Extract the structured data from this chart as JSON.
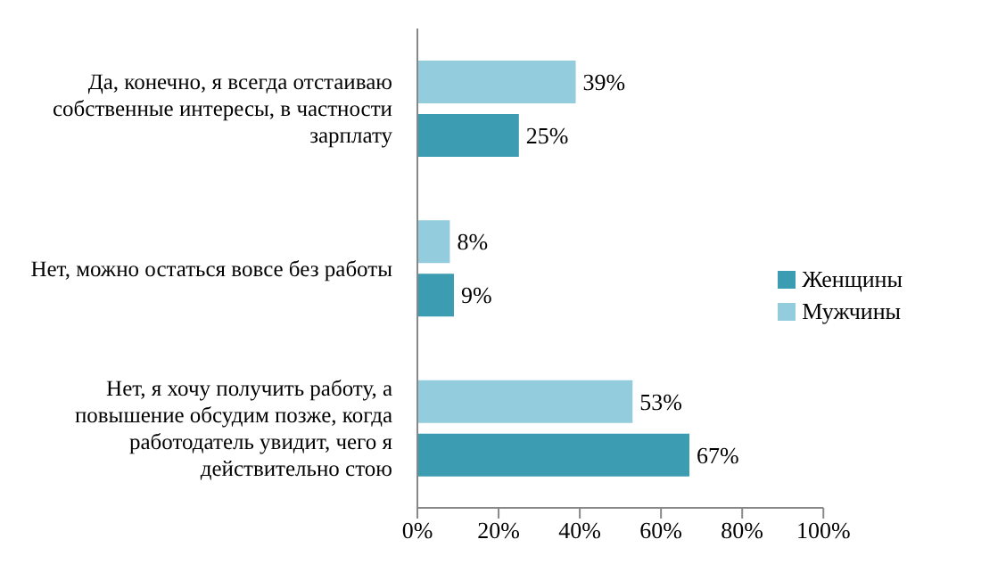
{
  "chart_data": {
    "type": "bar",
    "orientation": "horizontal",
    "categories": [
      "Да, конечно, я всегда отстаиваю собственные интересы, в частности зарплату",
      "Нет, можно остаться вовсе без работы",
      "Нет, я хочу получить работу, а повышение обсудим позже, когда работодатель увидит, чего я действительно стою"
    ],
    "series": [
      {
        "name": "Мужчины",
        "color": "#93cddd",
        "values": [
          39,
          8,
          53
        ],
        "value_labels": [
          "39%",
          "8%",
          "53%"
        ]
      },
      {
        "name": "Женщины",
        "color": "#3b9cb2",
        "values": [
          25,
          9,
          67
        ],
        "value_labels": [
          "25%",
          "9%",
          "67%"
        ]
      }
    ],
    "xlim": [
      0,
      100
    ],
    "xticks": [
      {
        "value": 0,
        "label": "0%"
      },
      {
        "value": 20,
        "label": "20%"
      },
      {
        "value": 40,
        "label": "40%"
      },
      {
        "value": 60,
        "label": "60%"
      },
      {
        "value": 80,
        "label": "80%"
      },
      {
        "value": 100,
        "label": "100%"
      }
    ],
    "grid": false,
    "legend": "right"
  }
}
